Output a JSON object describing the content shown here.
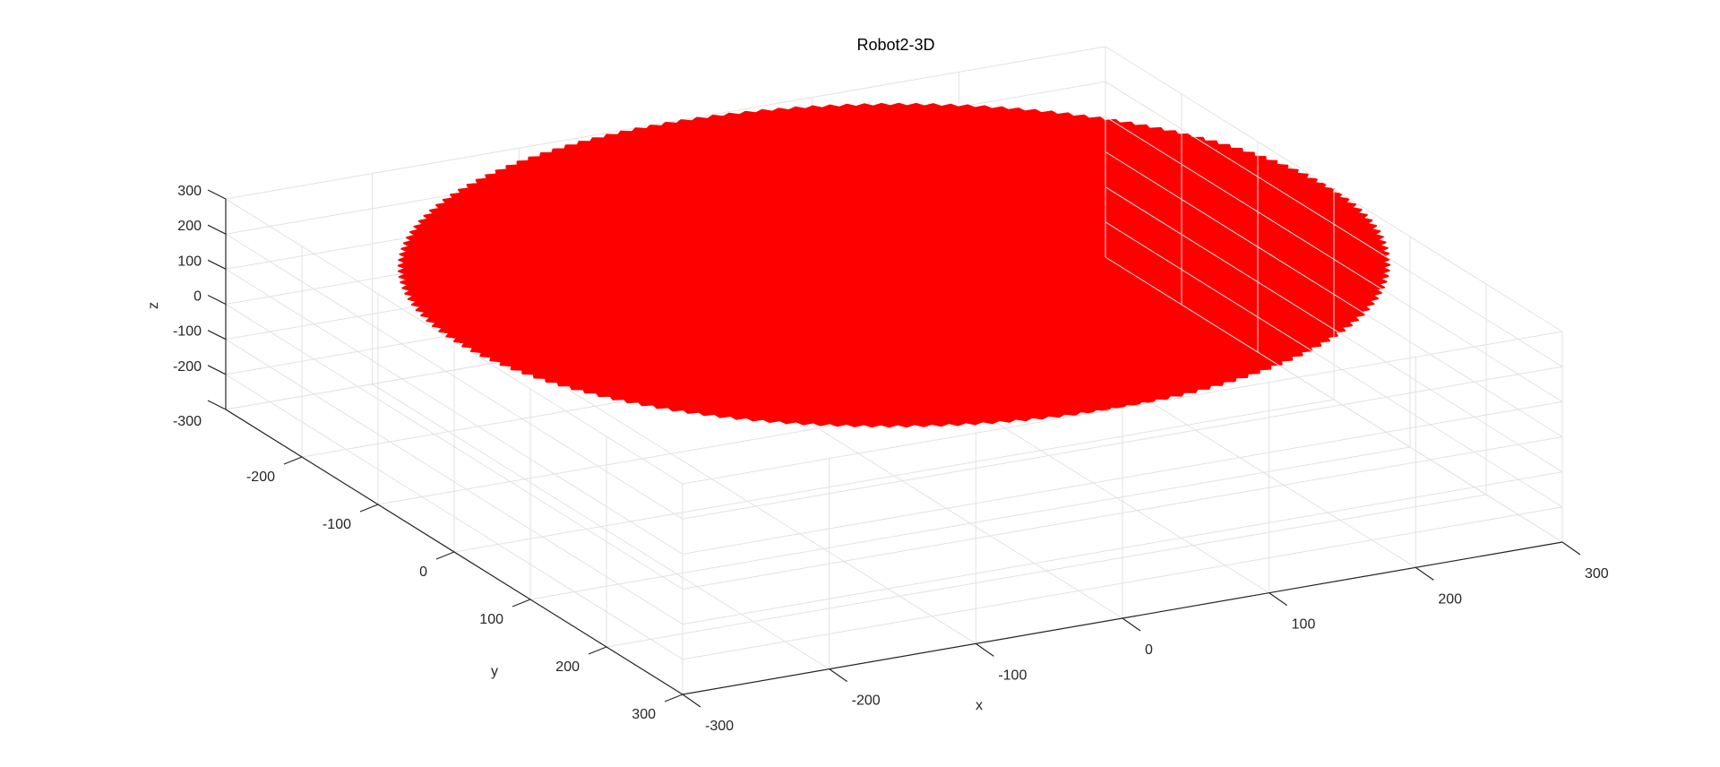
{
  "chart_data": {
    "type": "scatter",
    "title": "Robot2-3D",
    "xlabel": "x",
    "ylabel": "y",
    "zlabel": "z",
    "xlim": [
      -300,
      300
    ],
    "ylim": [
      -300,
      300
    ],
    "zlim": [
      -300,
      300
    ],
    "x_ticks": [
      -300,
      -200,
      -100,
      0,
      100,
      200,
      300
    ],
    "y_ticks": [
      -200,
      -100,
      0,
      100,
      200,
      300
    ],
    "z_ticks": [
      -300,
      -200,
      -100,
      0,
      100,
      200,
      300
    ],
    "x_tick_labels": [
      "-300",
      "-200",
      "-100",
      "0",
      "100",
      "200",
      "300"
    ],
    "y_tick_labels": [
      "-200",
      "-100",
      "0",
      "100",
      "200",
      "300"
    ],
    "z_tick_labels": [
      "-300",
      "-200",
      "-100",
      "0",
      "100",
      "200",
      "300"
    ],
    "grid": true,
    "series": [
      {
        "shape": "filled disk of points",
        "center": [
          0,
          0,
          300
        ],
        "radius": 300,
        "color": "#ff0000"
      }
    ]
  },
  "colors": {
    "grid": "#e2e2e2",
    "axis": "#262626",
    "data": "#ff0000"
  }
}
